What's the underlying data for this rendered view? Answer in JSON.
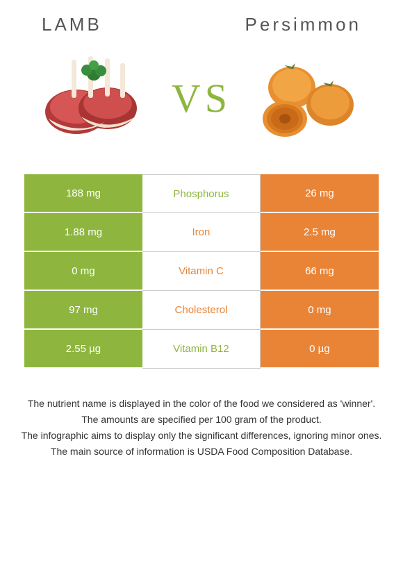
{
  "header": {
    "left_title": "LAMB",
    "right_title": "Persimmon"
  },
  "vs_text": "VS",
  "colors": {
    "green": "#8eb63f",
    "orange": "#e98436",
    "mid_green_text": "#8eb63f",
    "mid_orange_text": "#e98436",
    "border": "#cccccc"
  },
  "rows": [
    {
      "left": "188 mg",
      "mid": "Phosphorus",
      "right": "26 mg",
      "winner": "left"
    },
    {
      "left": "1.88 mg",
      "mid": "Iron",
      "right": "2.5 mg",
      "winner": "right"
    },
    {
      "left": "0 mg",
      "mid": "Vitamin C",
      "right": "66 mg",
      "winner": "right"
    },
    {
      "left": "97 mg",
      "mid": "Cholesterol",
      "right": "0 mg",
      "winner": "right"
    },
    {
      "left": "2.55 µg",
      "mid": "Vitamin B12",
      "right": "0 µg",
      "winner": "left"
    }
  ],
  "footer": {
    "line1": "The nutrient name is displayed in the color of the food we considered as 'winner'.",
    "line2": "The amounts are specified per 100 gram of the product.",
    "line3": "The infographic aims to display only the significant differences, ignoring minor ones.",
    "line4": "The main source of information is USDA Food Composition Database."
  }
}
